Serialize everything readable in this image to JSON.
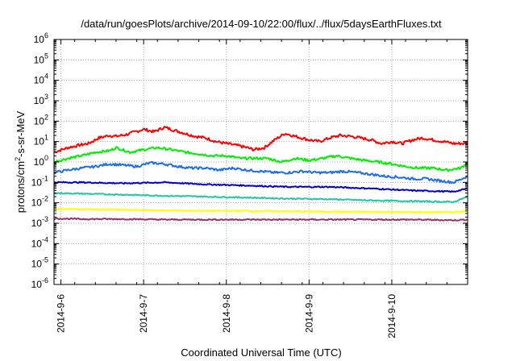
{
  "chart_data": {
    "type": "line",
    "title": "/data/run/goesPlots/archive/2014-09-10/22:00/flux/../flux/5daysEarthFluxes.txt",
    "xlabel": "Coordinated Universal Time (UTC)",
    "ylabel": "protons/cm2-s-sr-MeV",
    "ylabel_parts": {
      "pre": "protons/cm",
      "sup": "2",
      "post": "-s-sr-MeV"
    },
    "y_scale": "log",
    "ylim": [
      1e-06,
      1000000
    ],
    "y_ticks": [
      {
        "value": 1e-06,
        "base": "10",
        "exp": "-6"
      },
      {
        "value": 1e-05,
        "base": "10",
        "exp": "-5"
      },
      {
        "value": 0.0001,
        "base": "10",
        "exp": "-4"
      },
      {
        "value": 0.001,
        "base": "10",
        "exp": "-3"
      },
      {
        "value": 0.01,
        "base": "10",
        "exp": "-2"
      },
      {
        "value": 0.1,
        "base": "10",
        "exp": "-1"
      },
      {
        "value": 1,
        "base": "10",
        "exp": "0"
      },
      {
        "value": 10,
        "base": "10",
        "exp": "1"
      },
      {
        "value": 100,
        "base": "10",
        "exp": "2"
      },
      {
        "value": 1000,
        "base": "10",
        "exp": "3"
      },
      {
        "value": 10000,
        "base": "10",
        "exp": "4"
      },
      {
        "value": 100000,
        "base": "10",
        "exp": "5"
      },
      {
        "value": 1000000,
        "base": "10",
        "exp": "6"
      }
    ],
    "xlim": [
      "2014-09-05 22:00",
      "2014-09-10 22:00"
    ],
    "x_ticks": [
      {
        "value": "2014-09-06 00:00",
        "label": "2014-9-6"
      },
      {
        "value": "2014-09-07 00:00",
        "label": "2014-9-7"
      },
      {
        "value": "2014-09-08 00:00",
        "label": "2014-9-8"
      },
      {
        "value": "2014-09-09 00:00",
        "label": "2014-9-9"
      },
      {
        "value": "2014-09-10 00:00",
        "label": "2014-9-10"
      }
    ],
    "grid": true,
    "series": [
      {
        "color": "#ff0000",
        "x": [
          "2014-09-05 22:00",
          "2014-09-06 02:00",
          "2014-09-06 06:00",
          "2014-09-06 08:00",
          "2014-09-06 11:00",
          "2014-09-06 14:00",
          "2014-09-06 16:00",
          "2014-09-06 19:00",
          "2014-09-07 00:00",
          "2014-09-07 03:00",
          "2014-09-07 06:00",
          "2014-09-07 09:00",
          "2014-09-07 12:00",
          "2014-09-07 15:00",
          "2014-09-07 18:00",
          "2014-09-07 21:00",
          "2014-09-08 00:00",
          "2014-09-08 04:00",
          "2014-09-08 06:00",
          "2014-09-08 08:00",
          "2014-09-08 11:00",
          "2014-09-08 14:00",
          "2014-09-08 17:00",
          "2014-09-08 20:00",
          "2014-09-09 00:00",
          "2014-09-09 03:00",
          "2014-09-09 06:00",
          "2014-09-09 09:00",
          "2014-09-09 12:00",
          "2014-09-09 15:00",
          "2014-09-09 18:00",
          "2014-09-09 21:00",
          "2014-09-10 00:00",
          "2014-09-10 03:00",
          "2014-09-10 06:00",
          "2014-09-10 09:00",
          "2014-09-10 12:00",
          "2014-09-10 15:00",
          "2014-09-10 18:00",
          "2014-09-10 22:00"
        ],
        "values": [
          3,
          5,
          7,
          8,
          15,
          20,
          18,
          22,
          40,
          30,
          50,
          35,
          25,
          18,
          15,
          10,
          8,
          6,
          5,
          4,
          5,
          12,
          25,
          18,
          12,
          10,
          15,
          20,
          18,
          15,
          12,
          8,
          10,
          8,
          12,
          15,
          12,
          10,
          8,
          8
        ]
      },
      {
        "color": "#00ee00",
        "x": [
          "2014-09-05 22:00",
          "2014-09-06 02:00",
          "2014-09-06 06:00",
          "2014-09-06 10:00",
          "2014-09-06 14:00",
          "2014-09-06 16:00",
          "2014-09-06 20:00",
          "2014-09-07 00:00",
          "2014-09-07 04:00",
          "2014-09-07 08:00",
          "2014-09-07 12:00",
          "2014-09-07 16:00",
          "2014-09-07 20:00",
          "2014-09-08 00:00",
          "2014-09-08 04:00",
          "2014-09-08 08:00",
          "2014-09-08 12:00",
          "2014-09-08 16:00",
          "2014-09-08 20:00",
          "2014-09-09 00:00",
          "2014-09-09 04:00",
          "2014-09-09 08:00",
          "2014-09-09 12:00",
          "2014-09-09 16:00",
          "2014-09-09 20:00",
          "2014-09-10 00:00",
          "2014-09-10 04:00",
          "2014-09-10 08:00",
          "2014-09-10 12:00",
          "2014-09-10 16:00",
          "2014-09-10 20:00",
          "2014-09-10 22:00"
        ],
        "values": [
          1,
          1.5,
          2,
          3,
          3.5,
          5,
          3,
          4,
          5,
          4,
          3,
          2.5,
          2,
          2,
          1.5,
          1.5,
          1.5,
          1,
          1.5,
          1.2,
          1.5,
          2,
          1.5,
          1.2,
          1,
          0.8,
          0.6,
          0.5,
          0.5,
          0.4,
          0.5,
          0.9
        ]
      },
      {
        "color": "#1e6fe6",
        "x": [
          "2014-09-05 22:00",
          "2014-09-06 02:00",
          "2014-09-06 06:00",
          "2014-09-06 10:00",
          "2014-09-06 14:00",
          "2014-09-06 18:00",
          "2014-09-06 22:00",
          "2014-09-07 02:00",
          "2014-09-07 06:00",
          "2014-09-07 10:00",
          "2014-09-07 14:00",
          "2014-09-07 18:00",
          "2014-09-07 22:00",
          "2014-09-08 02:00",
          "2014-09-08 06:00",
          "2014-09-08 10:00",
          "2014-09-08 14:00",
          "2014-09-08 18:00",
          "2014-09-08 22:00",
          "2014-09-09 02:00",
          "2014-09-09 06:00",
          "2014-09-09 10:00",
          "2014-09-09 14:00",
          "2014-09-09 18:00",
          "2014-09-09 22:00",
          "2014-09-10 02:00",
          "2014-09-10 06:00",
          "2014-09-10 10:00",
          "2014-09-10 14:00",
          "2014-09-10 18:00",
          "2014-09-10 22:00"
        ],
        "values": [
          0.3,
          0.4,
          0.5,
          0.6,
          0.8,
          0.7,
          0.6,
          0.9,
          0.8,
          0.6,
          0.5,
          0.5,
          0.4,
          0.5,
          0.4,
          0.35,
          0.3,
          0.3,
          0.35,
          0.3,
          0.3,
          0.35,
          0.3,
          0.25,
          0.2,
          0.18,
          0.15,
          0.15,
          0.12,
          0.1,
          0.2
        ]
      },
      {
        "color": "#0000cc",
        "x": [
          "2014-09-05 22:00",
          "2014-09-06 06:00",
          "2014-09-06 18:00",
          "2014-09-07 06:00",
          "2014-09-07 18:00",
          "2014-09-08 06:00",
          "2014-09-08 18:00",
          "2014-09-09 06:00",
          "2014-09-09 18:00",
          "2014-09-10 06:00",
          "2014-09-10 18:00",
          "2014-09-10 22:00"
        ],
        "values": [
          0.1,
          0.1,
          0.09,
          0.1,
          0.08,
          0.07,
          0.06,
          0.06,
          0.05,
          0.04,
          0.035,
          0.05
        ]
      },
      {
        "color": "#20c8a8",
        "x": [
          "2014-09-05 22:00",
          "2014-09-06 06:00",
          "2014-09-06 18:00",
          "2014-09-07 06:00",
          "2014-09-07 18:00",
          "2014-09-08 06:00",
          "2014-09-08 18:00",
          "2014-09-09 06:00",
          "2014-09-09 18:00",
          "2014-09-10 06:00",
          "2014-09-10 18:00",
          "2014-09-10 22:00"
        ],
        "values": [
          0.03,
          0.028,
          0.025,
          0.022,
          0.02,
          0.018,
          0.016,
          0.015,
          0.013,
          0.012,
          0.011,
          0.02
        ]
      },
      {
        "color": "#ffff00",
        "x": [
          "2014-09-05 22:00",
          "2014-09-06 06:00",
          "2014-09-06 18:00",
          "2014-09-07 06:00",
          "2014-09-07 18:00",
          "2014-09-08 06:00",
          "2014-09-08 18:00",
          "2014-09-09 06:00",
          "2014-09-09 18:00",
          "2014-09-10 06:00",
          "2014-09-10 18:00",
          "2014-09-10 22:00"
        ],
        "values": [
          0.005,
          0.0048,
          0.0045,
          0.0042,
          0.004,
          0.004,
          0.0038,
          0.0037,
          0.0036,
          0.0035,
          0.0035,
          0.004
        ]
      },
      {
        "color": "#993366",
        "x": [
          "2014-09-05 22:00",
          "2014-09-06 06:00",
          "2014-09-06 18:00",
          "2014-09-07 06:00",
          "2014-09-07 18:00",
          "2014-09-08 06:00",
          "2014-09-08 18:00",
          "2014-09-09 06:00",
          "2014-09-09 18:00",
          "2014-09-10 06:00",
          "2014-09-10 18:00",
          "2014-09-10 22:00"
        ],
        "values": [
          0.0017,
          0.0016,
          0.0016,
          0.0015,
          0.0015,
          0.0015,
          0.0015,
          0.0015,
          0.0015,
          0.0015,
          0.0014,
          0.0015
        ]
      }
    ]
  }
}
